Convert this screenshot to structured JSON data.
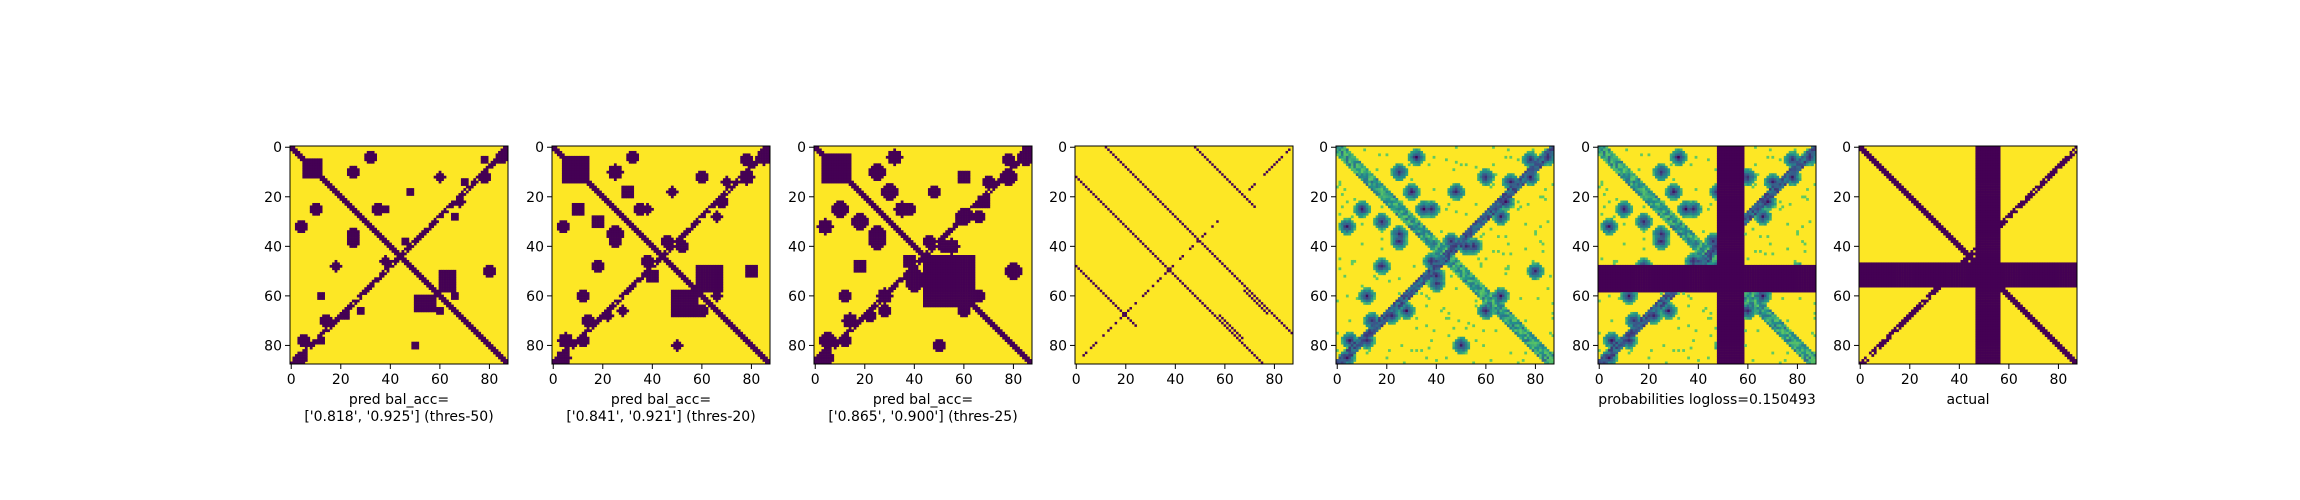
{
  "palette": {
    "low": "#440154",
    "mid": "#21918c",
    "high": "#fde725",
    "axis": "#000000"
  },
  "chart_data": [
    {
      "type": "heatmap",
      "panel": "binary prediction",
      "size": 88,
      "xticks": [
        "0",
        "20",
        "40",
        "60",
        "80"
      ],
      "yticks": [
        "0",
        "20",
        "40",
        "60",
        "80"
      ],
      "xlabel_lines": [
        "pred bal_acc=",
        "['0.818', '0.925'] (thres-50)"
      ],
      "bands": [
        [
          5,
          12,
          5,
          12
        ],
        [
          50,
          58,
          60,
          66
        ]
      ],
      "blobs": [
        [
          10,
          25
        ],
        [
          4,
          32
        ],
        [
          12,
          60
        ],
        [
          25,
          38
        ],
        [
          35,
          25
        ],
        [
          50,
          80
        ],
        [
          66,
          28
        ],
        [
          70,
          14
        ],
        [
          78,
          12
        ],
        [
          85,
          4
        ],
        [
          60,
          66
        ],
        [
          46,
          38
        ],
        [
          18,
          48
        ],
        [
          22,
          68
        ],
        [
          5,
          78
        ],
        [
          2,
          86
        ]
      ],
      "blob_size": 1.6
    },
    {
      "type": "heatmap",
      "panel": "binary prediction",
      "size": 88,
      "xticks": [
        "0",
        "20",
        "40",
        "60",
        "80"
      ],
      "yticks": [
        "0",
        "20",
        "40",
        "60",
        "80"
      ],
      "xlabel_lines": [
        "pred bal_acc=",
        "['0.841', '0.921'] (thres-20)"
      ],
      "bands": [
        [
          4,
          14,
          4,
          14
        ],
        [
          48,
          58,
          58,
          68
        ]
      ],
      "blobs": [
        [
          10,
          25
        ],
        [
          4,
          32
        ],
        [
          12,
          60
        ],
        [
          25,
          38
        ],
        [
          35,
          25
        ],
        [
          50,
          80
        ],
        [
          66,
          28
        ],
        [
          70,
          14
        ],
        [
          78,
          12
        ],
        [
          85,
          4
        ],
        [
          60,
          66
        ],
        [
          46,
          38
        ],
        [
          18,
          48
        ],
        [
          22,
          68
        ],
        [
          5,
          78
        ],
        [
          2,
          86
        ],
        [
          30,
          18
        ],
        [
          40,
          52
        ]
      ],
      "blob_size": 2.0
    },
    {
      "type": "heatmap",
      "panel": "binary prediction",
      "size": 88,
      "xticks": [
        "0",
        "20",
        "40",
        "60",
        "80"
      ],
      "yticks": [
        "0",
        "20",
        "40",
        "60",
        "80"
      ],
      "xlabel_lines": [
        "pred bal_acc=",
        "['0.865', '0.900'] (thres-25)"
      ],
      "bands": [
        [
          3,
          14,
          3,
          14
        ],
        [
          44,
          62,
          46,
          64
        ]
      ],
      "blobs": [
        [
          10,
          25
        ],
        [
          4,
          32
        ],
        [
          12,
          60
        ],
        [
          25,
          38
        ],
        [
          35,
          25
        ],
        [
          50,
          80
        ],
        [
          66,
          28
        ],
        [
          70,
          14
        ],
        [
          78,
          12
        ],
        [
          85,
          4
        ],
        [
          60,
          66
        ],
        [
          46,
          38
        ],
        [
          18,
          48
        ],
        [
          22,
          68
        ],
        [
          5,
          78
        ],
        [
          2,
          86
        ],
        [
          30,
          18
        ],
        [
          40,
          52
        ],
        [
          55,
          40
        ],
        [
          28,
          60
        ]
      ],
      "blob_size": 2.4
    },
    {
      "type": "heatmap",
      "panel": "sparse",
      "size": 88,
      "xticks": [
        "0",
        "20",
        "40",
        "60",
        "80"
      ],
      "yticks": [
        "0",
        "20",
        "40",
        "60",
        "80"
      ],
      "xlabel_lines": [],
      "segments": [
        [
          0,
          88,
          12,
          0
        ],
        [
          68,
          78,
          10,
          0
        ],
        [
          14,
          18,
          30,
          0
        ],
        [
          31,
          73,
          48,
          0
        ],
        [
          65,
          88,
          -64,
          0
        ]
      ]
    },
    {
      "type": "heatmap",
      "panel": "probabilities",
      "size": 88,
      "xticks": [
        "0",
        "20",
        "40",
        "60",
        "80"
      ],
      "yticks": [
        "0",
        "20",
        "40",
        "60",
        "80"
      ],
      "xlabel_lines": []
    },
    {
      "type": "heatmap",
      "panel": "probabilities with mask",
      "size": 88,
      "xticks": [
        "0",
        "20",
        "40",
        "60",
        "80"
      ],
      "yticks": [
        "0",
        "20",
        "40",
        "60",
        "80"
      ],
      "xlabel_lines": [
        "probabilities logloss=0.150493"
      ],
      "mask_band": [
        48,
        58
      ]
    },
    {
      "type": "heatmap",
      "panel": "actual",
      "size": 88,
      "xticks": [
        "0",
        "20",
        "40",
        "60",
        "80"
      ],
      "yticks": [
        "0",
        "20",
        "40",
        "60",
        "80"
      ],
      "xlabel_lines": [
        "actual"
      ],
      "mask_band": [
        47,
        56
      ]
    }
  ]
}
